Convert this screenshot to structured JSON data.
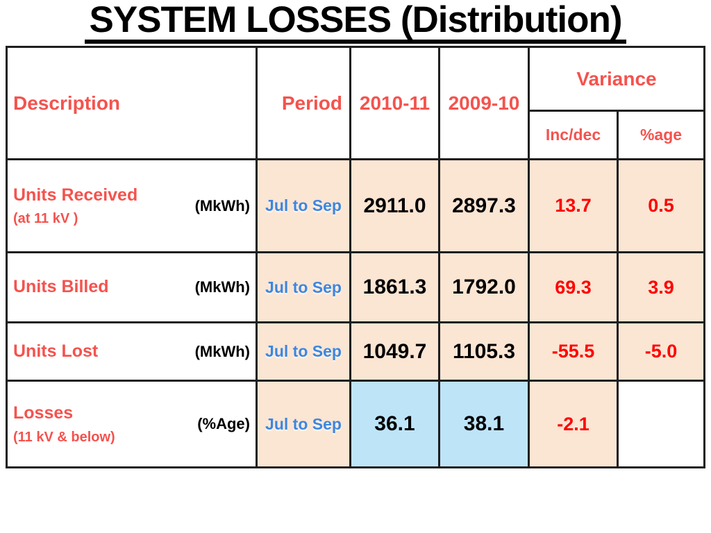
{
  "title": "SYSTEM LOSSES (Distribution)",
  "table": {
    "headers": {
      "description": "Description",
      "period": "Period",
      "year1": "2010-11",
      "year2": "2009-10",
      "variance": "Variance",
      "inc_dec": "Inc/dec",
      "pct_age": "%age"
    },
    "rows": [
      {
        "label": "Units Received",
        "sublabel": "(at 11 kV )",
        "unit": "(MkWh)",
        "period": "Jul to Sep",
        "y2010_11": "2911.0",
        "y2009_10": "2897.3",
        "inc_dec": "13.7",
        "pct_age": "0.5"
      },
      {
        "label": "Units Billed",
        "sublabel": null,
        "unit": "(MkWh)",
        "period": "Jul to Sep",
        "y2010_11": "1861.3",
        "y2009_10": "1792.0",
        "inc_dec": "69.3",
        "pct_age": "3.9"
      },
      {
        "label": "Units Lost",
        "sublabel": null,
        "unit": "(MkWh)",
        "period": "Jul to Sep",
        "y2010_11": "1049.7",
        "y2009_10": "1105.3",
        "inc_dec": "-55.5",
        "pct_age": "-5.0"
      },
      {
        "label": "Losses",
        "sublabel": "(11 kV & below)",
        "unit": "(%Age)",
        "period": "Jul to Sep",
        "y2010_11": "36.1",
        "y2009_10": "38.1",
        "inc_dec": "-2.1",
        "pct_age": null
      }
    ]
  },
  "colors": {
    "header_red": "#f4534e",
    "value_red": "#ff0000",
    "period_blue": "#3d86df",
    "peach_bg": "#fbe5d3",
    "highlight_blue_bg": "#bee4f8",
    "border": "#1e1e1e",
    "title_black": "#000000"
  }
}
